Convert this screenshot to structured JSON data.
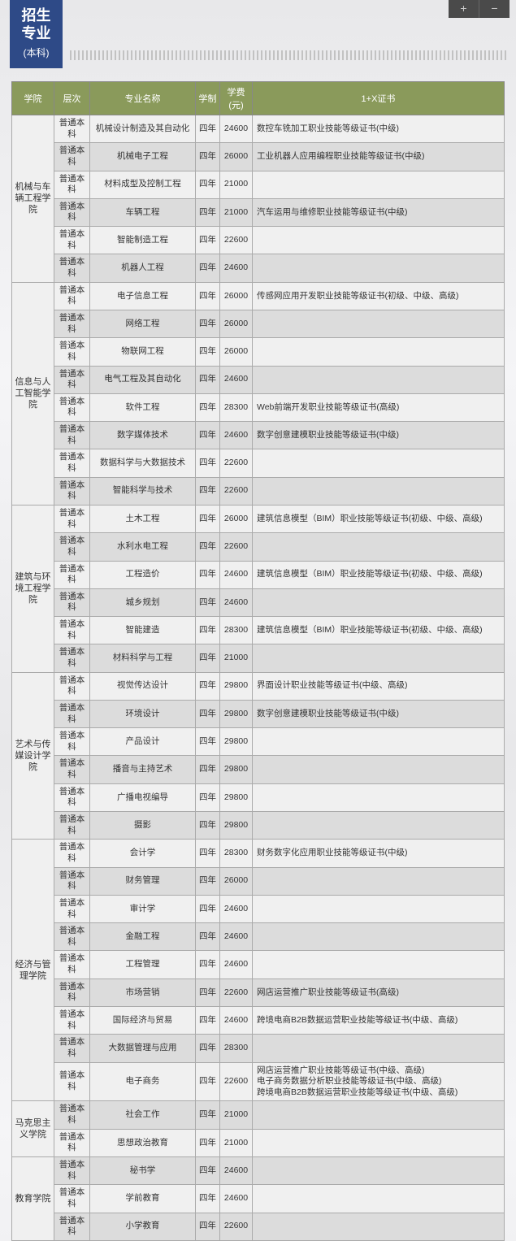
{
  "topbar": {
    "plus": "+",
    "minus": "−"
  },
  "header": {
    "line1": "招生",
    "line2": "专业",
    "sub": "(本科)"
  },
  "columns": [
    "学院",
    "层次",
    "专业名称",
    "学制",
    "学费(元)",
    "1+X证书"
  ],
  "colleges": [
    {
      "name": "机械与车辆工程学院",
      "rows": [
        {
          "level": "普通本科",
          "major": "机械设计制造及其自动化",
          "dur": "四年",
          "fee": "24600",
          "cert": "数控车铣加工职业技能等级证书(中级)"
        },
        {
          "level": "普通本科",
          "major": "机械电子工程",
          "dur": "四年",
          "fee": "26000",
          "cert": "工业机器人应用编程职业技能等级证书(中级)"
        },
        {
          "level": "普通本科",
          "major": "材料成型及控制工程",
          "dur": "四年",
          "fee": "21000",
          "cert": ""
        },
        {
          "level": "普通本科",
          "major": "车辆工程",
          "dur": "四年",
          "fee": "21000",
          "cert": "汽车运用与维修职业技能等级证书(中级)"
        },
        {
          "level": "普通本科",
          "major": "智能制造工程",
          "dur": "四年",
          "fee": "22600",
          "cert": ""
        },
        {
          "level": "普通本科",
          "major": "机器人工程",
          "dur": "四年",
          "fee": "24600",
          "cert": ""
        }
      ]
    },
    {
      "name": "信息与人工智能学院",
      "rows": [
        {
          "level": "普通本科",
          "major": "电子信息工程",
          "dur": "四年",
          "fee": "26000",
          "cert": "传感网应用开发职业技能等级证书(初级、中级、高级)"
        },
        {
          "level": "普通本科",
          "major": "网络工程",
          "dur": "四年",
          "fee": "26000",
          "cert": ""
        },
        {
          "level": "普通本科",
          "major": "物联网工程",
          "dur": "四年",
          "fee": "26000",
          "cert": ""
        },
        {
          "level": "普通本科",
          "major": "电气工程及其自动化",
          "dur": "四年",
          "fee": "24600",
          "cert": ""
        },
        {
          "level": "普通本科",
          "major": "软件工程",
          "dur": "四年",
          "fee": "28300",
          "cert": "Web前端开发职业技能等级证书(高级)"
        },
        {
          "level": "普通本科",
          "major": "数字媒体技术",
          "dur": "四年",
          "fee": "24600",
          "cert": "数字创意建模职业技能等级证书(中级)"
        },
        {
          "level": "普通本科",
          "major": "数据科学与大数据技术",
          "dur": "四年",
          "fee": "22600",
          "cert": ""
        },
        {
          "level": "普通本科",
          "major": "智能科学与技术",
          "dur": "四年",
          "fee": "22600",
          "cert": ""
        }
      ]
    },
    {
      "name": "建筑与环境工程学院",
      "rows": [
        {
          "level": "普通本科",
          "major": "土木工程",
          "dur": "四年",
          "fee": "26000",
          "cert": "建筑信息模型（BIM）职业技能等级证书(初级、中级、高级)"
        },
        {
          "level": "普通本科",
          "major": "水利水电工程",
          "dur": "四年",
          "fee": "22600",
          "cert": ""
        },
        {
          "level": "普通本科",
          "major": "工程造价",
          "dur": "四年",
          "fee": "24600",
          "cert": "建筑信息模型（BIM）职业技能等级证书(初级、中级、高级)"
        },
        {
          "level": "普通本科",
          "major": "城乡规划",
          "dur": "四年",
          "fee": "24600",
          "cert": ""
        },
        {
          "level": "普通本科",
          "major": "智能建造",
          "dur": "四年",
          "fee": "28300",
          "cert": "建筑信息模型（BIM）职业技能等级证书(初级、中级、高级)"
        },
        {
          "level": "普通本科",
          "major": "材料科学与工程",
          "dur": "四年",
          "fee": "21000",
          "cert": ""
        }
      ]
    },
    {
      "name": "艺术与传媒设计学院",
      "rows": [
        {
          "level": "普通本科",
          "major": "视觉传达设计",
          "dur": "四年",
          "fee": "29800",
          "cert": "界面设计职业技能等级证书(中级、高级)"
        },
        {
          "level": "普通本科",
          "major": "环境设计",
          "dur": "四年",
          "fee": "29800",
          "cert": "数字创意建模职业技能等级证书(中级)"
        },
        {
          "level": "普通本科",
          "major": "产品设计",
          "dur": "四年",
          "fee": "29800",
          "cert": ""
        },
        {
          "level": "普通本科",
          "major": "播音与主持艺术",
          "dur": "四年",
          "fee": "29800",
          "cert": ""
        },
        {
          "level": "普通本科",
          "major": "广播电视编导",
          "dur": "四年",
          "fee": "29800",
          "cert": ""
        },
        {
          "level": "普通本科",
          "major": "摄影",
          "dur": "四年",
          "fee": "29800",
          "cert": ""
        }
      ]
    },
    {
      "name": "经济与管理学院",
      "rows": [
        {
          "level": "普通本科",
          "major": "会计学",
          "dur": "四年",
          "fee": "28300",
          "cert": "财务数字化应用职业技能等级证书(中级)"
        },
        {
          "level": "普通本科",
          "major": "财务管理",
          "dur": "四年",
          "fee": "26000",
          "cert": ""
        },
        {
          "level": "普通本科",
          "major": "审计学",
          "dur": "四年",
          "fee": "24600",
          "cert": ""
        },
        {
          "level": "普通本科",
          "major": "金融工程",
          "dur": "四年",
          "fee": "24600",
          "cert": ""
        },
        {
          "level": "普通本科",
          "major": "工程管理",
          "dur": "四年",
          "fee": "24600",
          "cert": ""
        },
        {
          "level": "普通本科",
          "major": "市场营销",
          "dur": "四年",
          "fee": "22600",
          "cert": "网店运营推广职业技能等级证书(高级)"
        },
        {
          "level": "普通本科",
          "major": "国际经济与贸易",
          "dur": "四年",
          "fee": "24600",
          "cert": "跨境电商B2B数据运营职业技能等级证书(中级、高级)"
        },
        {
          "level": "普通本科",
          "major": "大数据管理与应用",
          "dur": "四年",
          "fee": "28300",
          "cert": ""
        },
        {
          "level": "普通本科",
          "major": "电子商务",
          "dur": "四年",
          "fee": "22600",
          "cert": "网店运营推广职业技能等级证书(中级、高级)\n电子商务数据分析职业技能等级证书(中级、高级)\n跨境电商B2B数据运营职业技能等级证书(中级、高级)"
        }
      ]
    },
    {
      "name": "马克思主义学院",
      "rows": [
        {
          "level": "普通本科",
          "major": "社会工作",
          "dur": "四年",
          "fee": "21000",
          "cert": ""
        },
        {
          "level": "普通本科",
          "major": "思想政治教育",
          "dur": "四年",
          "fee": "21000",
          "cert": ""
        }
      ]
    },
    {
      "name": "教育学院",
      "rows": [
        {
          "level": "普通本科",
          "major": "秘书学",
          "dur": "四年",
          "fee": "24600",
          "cert": ""
        },
        {
          "level": "普通本科",
          "major": "学前教育",
          "dur": "四年",
          "fee": "24600",
          "cert": ""
        },
        {
          "level": "普通本科",
          "major": "小学教育",
          "dur": "四年",
          "fee": "22600",
          "cert": ""
        }
      ]
    }
  ]
}
